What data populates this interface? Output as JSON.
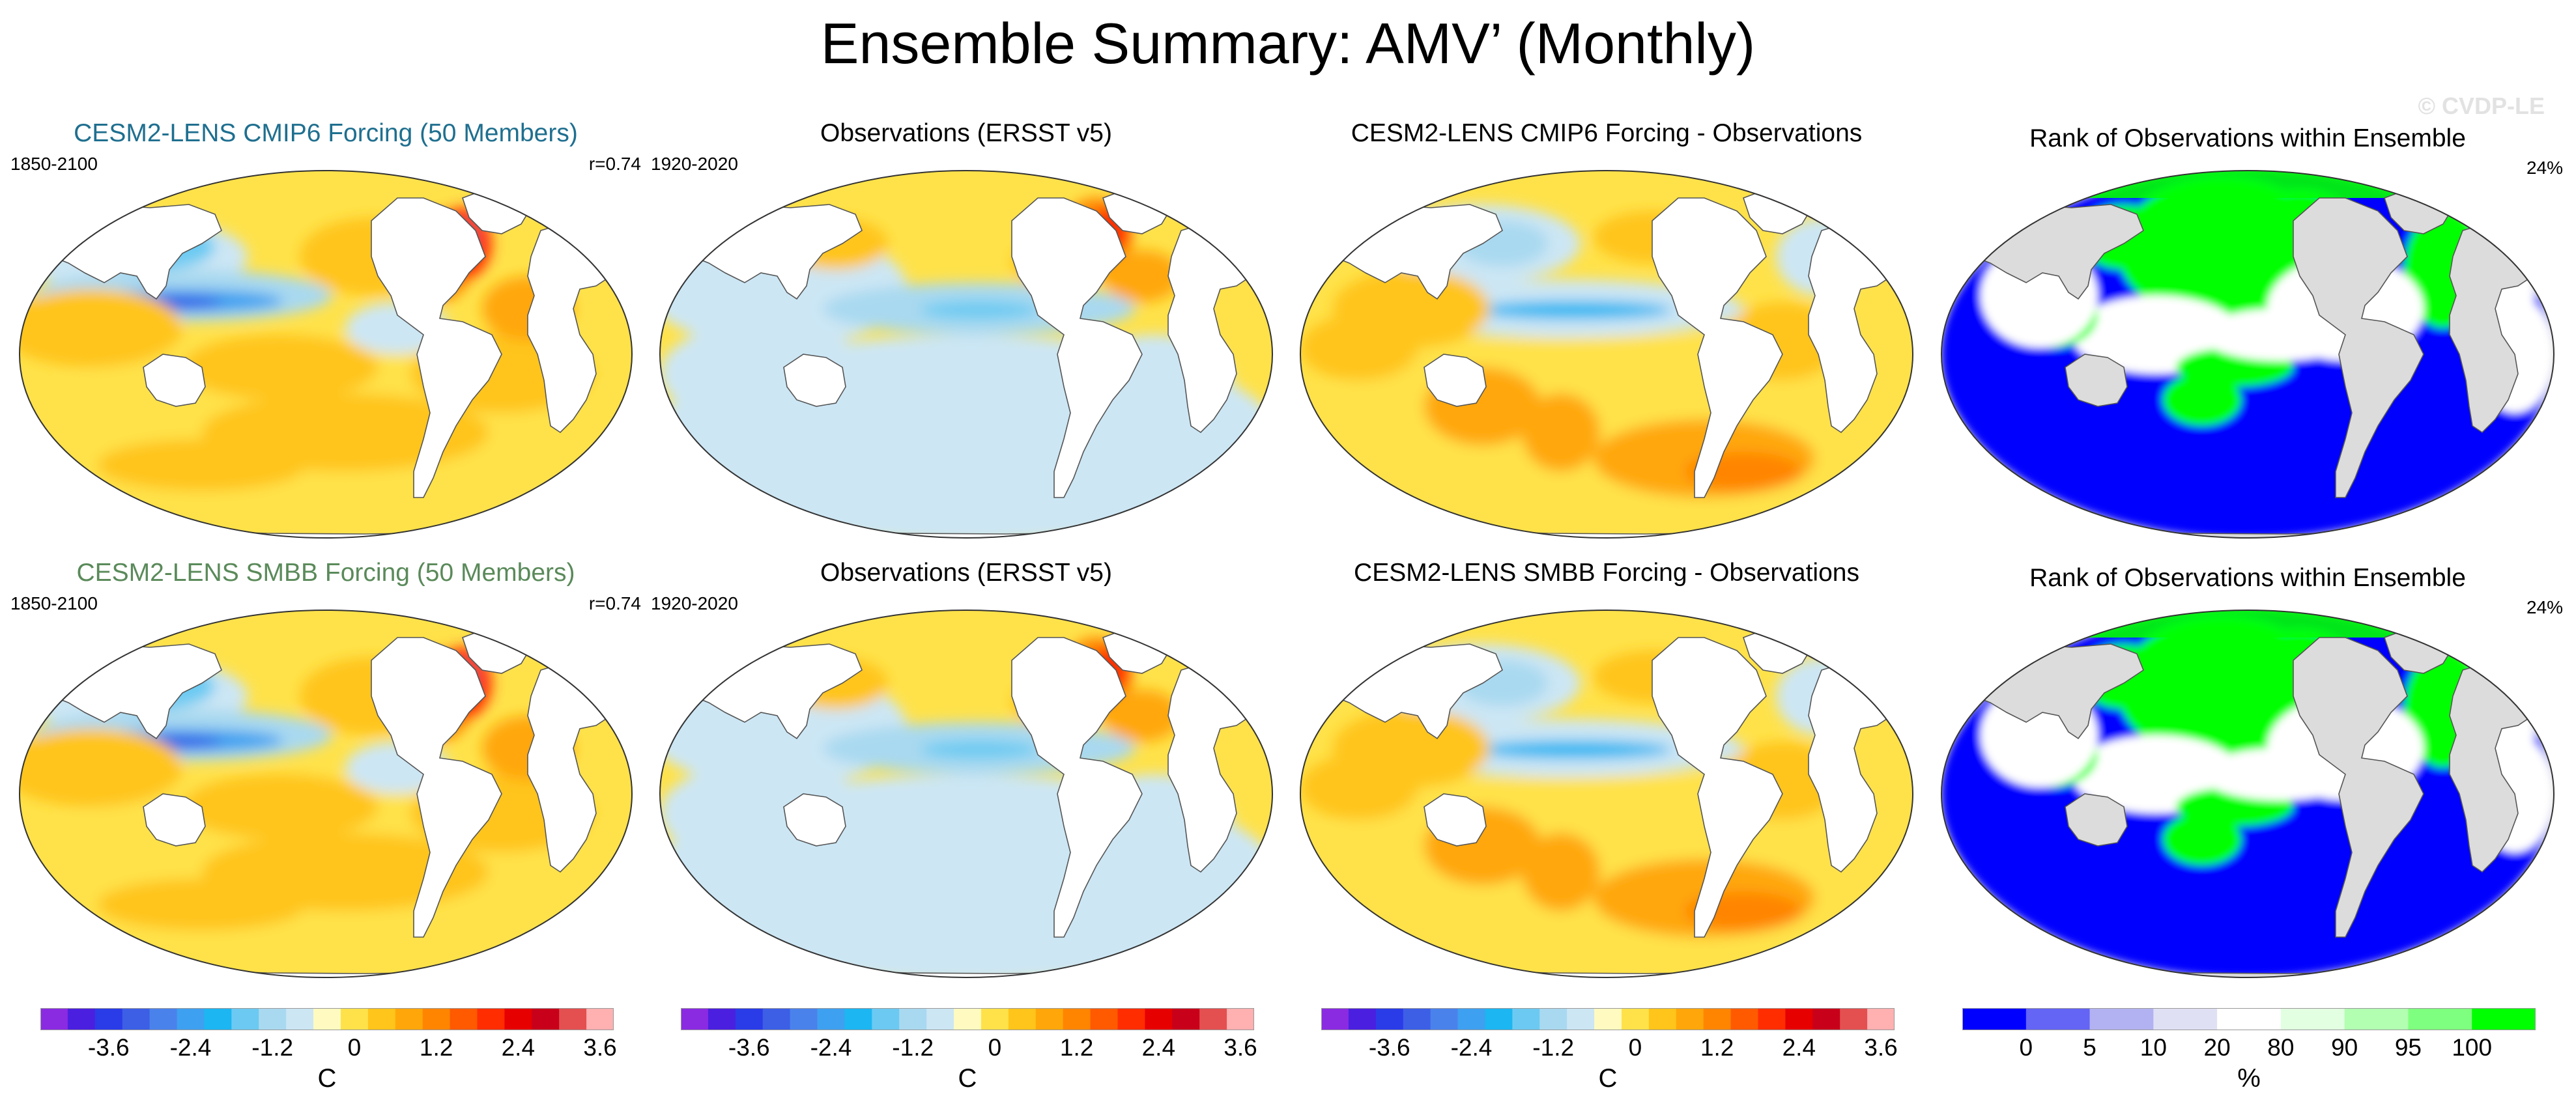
{
  "title": "Ensemble Summary: AMV’ (Monthly)",
  "watermark": "© CVDP-LE",
  "colors": {
    "cmip6_title": "#1f6f8f",
    "smbb_title": "#5a8a5a",
    "ocean_default": "#ffffff",
    "land": "#ffffff",
    "rank_land": "#dcdcdc"
  },
  "rows": [
    {
      "panels": [
        {
          "title": "CESM2-LENS CMIP6 Forcing (50 Members)",
          "left": "1850-2100",
          "right": "r=0.74",
          "kind": "model_cmip6"
        },
        {
          "title": "Observations (ERSST v5)",
          "left": "1920-2020",
          "right": "",
          "kind": "obs"
        },
        {
          "title": "CESM2-LENS CMIP6 Forcing - Observations",
          "left": "",
          "right": "",
          "kind": "diff"
        },
        {
          "title": "Rank of Observations within Ensemble",
          "left": "",
          "right": "24%",
          "kind": "rank"
        }
      ]
    },
    {
      "panels": [
        {
          "title": "CESM2-LENS SMBB Forcing (50 Members)",
          "left": "1850-2100",
          "right": "r=0.74",
          "kind": "model_smbb"
        },
        {
          "title": "Observations (ERSST v5)",
          "left": "1920-2020",
          "right": "",
          "kind": "obs"
        },
        {
          "title": "CESM2-LENS SMBB Forcing - Observations",
          "left": "",
          "right": "",
          "kind": "diff"
        },
        {
          "title": "Rank of Observations within Ensemble",
          "left": "",
          "right": "24%",
          "kind": "rank"
        }
      ]
    }
  ],
  "colorbar_temp": {
    "unit": "C",
    "labels": [
      "-3.6",
      "-2.4",
      "-1.2",
      "0",
      "1.2",
      "2.4",
      "3.6"
    ],
    "colors": [
      "#8a2be2",
      "#4b1fe0",
      "#2a3be8",
      "#3c5fe6",
      "#4a82ec",
      "#3ea0f0",
      "#1cb6f2",
      "#6ccaf2",
      "#a9d9f0",
      "#cce6f4",
      "#fffbc0",
      "#ffe24a",
      "#ffc51a",
      "#ffa70a",
      "#ff8500",
      "#ff5a00",
      "#ff2d00",
      "#e60000",
      "#c8001a",
      "#e45050",
      "#ffb0b0"
    ]
  },
  "colorbar_rank": {
    "unit": "%",
    "labels": [
      "0",
      "5",
      "10",
      "20",
      "80",
      "90",
      "95",
      "100"
    ],
    "colors": [
      "#0000ff",
      "#6464f5",
      "#b2b2f2",
      "#e0e0f5",
      "#ffffff",
      "#e2ffe2",
      "#b2ffb2",
      "#7fff7f",
      "#00ff00"
    ]
  }
}
